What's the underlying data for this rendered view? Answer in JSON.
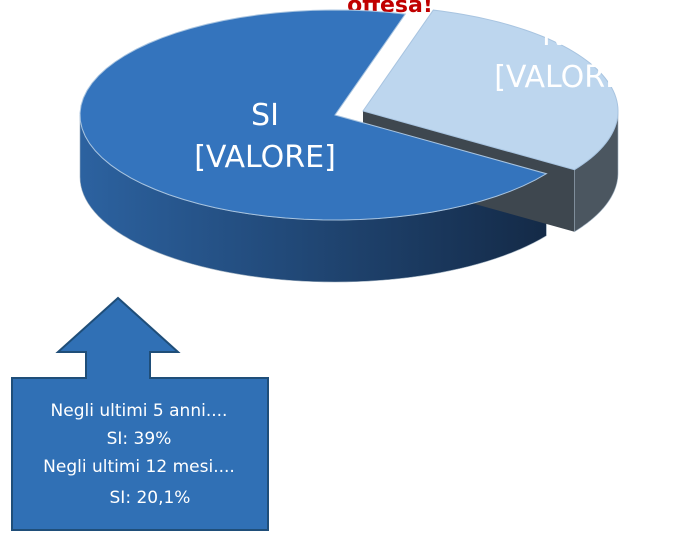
{
  "chart_data": {
    "type": "pie",
    "title": "offesa!",
    "categories": [
      "SI",
      "NO"
    ],
    "values": [
      70,
      30
    ],
    "value_labels": [
      "[VALORE]",
      "[VALORE]"
    ],
    "colors": [
      "#3474bd",
      "#bdd6ee"
    ],
    "annotations": [
      "Negli ultimi 5 anni....",
      "SI:  39%",
      "Negli ultimi 12 mesi....",
      "SI: 20,1%"
    ]
  }
}
